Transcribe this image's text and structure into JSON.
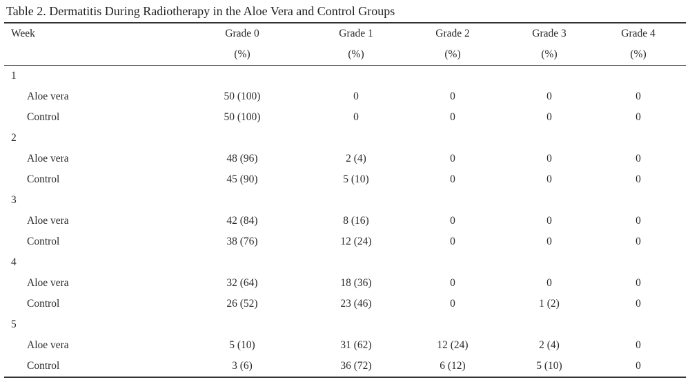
{
  "caption": "Table 2. Dermatitis During Radiotherapy in the Aloe Vera and Control Groups",
  "header": {
    "week": "Week",
    "grades": [
      {
        "label": "Grade 0",
        "unit": "(%)"
      },
      {
        "label": "Grade 1",
        "unit": "(%)"
      },
      {
        "label": "Grade 2",
        "unit": "(%)"
      },
      {
        "label": "Grade 3",
        "unit": "(%)"
      },
      {
        "label": "Grade 4",
        "unit": "(%)"
      }
    ]
  },
  "weeks": [
    {
      "week": "1",
      "rows": [
        {
          "group": "Aloe vera",
          "values": [
            "50 (100)",
            "0",
            "0",
            "0",
            "0"
          ]
        },
        {
          "group": "Control",
          "values": [
            "50 (100)",
            "0",
            "0",
            "0",
            "0"
          ]
        }
      ]
    },
    {
      "week": "2",
      "rows": [
        {
          "group": "Aloe vera",
          "values": [
            "48 (96)",
            "2 (4)",
            "0",
            "0",
            "0"
          ]
        },
        {
          "group": "Control",
          "values": [
            "45 (90)",
            "5 (10)",
            "0",
            "0",
            "0"
          ]
        }
      ]
    },
    {
      "week": "3",
      "rows": [
        {
          "group": "Aloe vera",
          "values": [
            "42 (84)",
            "8 (16)",
            "0",
            "0",
            "0"
          ]
        },
        {
          "group": "Control",
          "values": [
            "38 (76)",
            "12 (24)",
            "0",
            "0",
            "0"
          ]
        }
      ]
    },
    {
      "week": "4",
      "rows": [
        {
          "group": "Aloe vera",
          "values": [
            "32 (64)",
            "18 (36)",
            "0",
            "0",
            "0"
          ]
        },
        {
          "group": "Control",
          "values": [
            "26 (52)",
            "23 (46)",
            "0",
            "1 (2)",
            "0"
          ]
        }
      ]
    },
    {
      "week": "5",
      "rows": [
        {
          "group": "Aloe vera",
          "values": [
            "5 (10)",
            "31 (62)",
            "12 (24)",
            "2 (4)",
            "0"
          ]
        },
        {
          "group": "Control",
          "values": [
            "3 (6)",
            "36 (72)",
            "6 (12)",
            "5 (10)",
            "0"
          ]
        }
      ]
    }
  ]
}
